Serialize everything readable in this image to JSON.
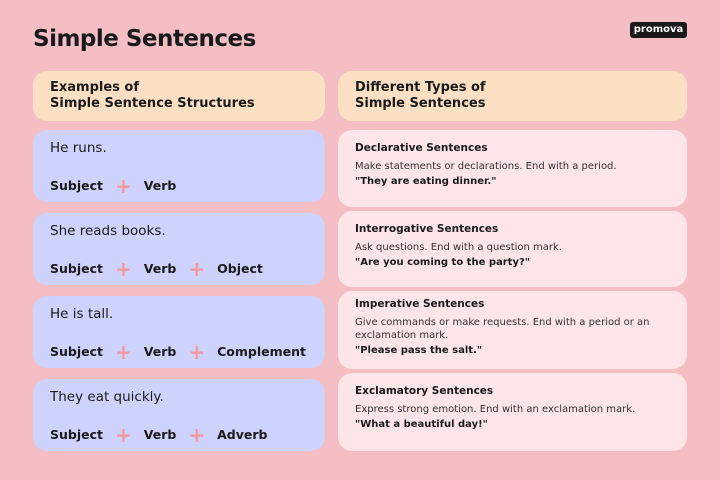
{
  "title": "Simple Sentences",
  "logo": "promova",
  "left_header": [
    "Examples of",
    "Simple Sentence Structures"
  ],
  "right_header": [
    "Different Types of",
    "Simple Sentences"
  ],
  "examples": [
    {
      "sentence": "He runs.",
      "parts": [
        "Subject",
        "Verb"
      ]
    },
    {
      "sentence": "She reads books.",
      "parts": [
        "Subject",
        "Verb",
        "Object"
      ]
    },
    {
      "sentence": "He is tall.",
      "parts": [
        "Subject",
        "Verb",
        "Complement"
      ]
    },
    {
      "sentence": "They eat quickly.",
      "parts": [
        "Subject",
        "Verb",
        "Adverb"
      ]
    }
  ],
  "types": [
    {
      "name": "Declarative Sentences",
      "desc": "Make statements or declarations. End with a period.",
      "example": "\"They are eating dinner.\""
    },
    {
      "name": "Interrogative Sentences",
      "desc": "Ask questions. End with a question mark.",
      "example": "\"Are you coming to the party?\""
    },
    {
      "name": "Imperative Sentences",
      "desc": "Give commands or make requests. End with a period or an exclamation mark.",
      "example": "\"Please pass the salt.\""
    },
    {
      "name": "Exclamatory Sentences",
      "desc": "Express strong emotion. End with an exclamation mark.",
      "example": "\"What a beautiful day!\""
    }
  ],
  "colors": {
    "background": "#f4bec4",
    "header": "#fde0c4",
    "example_card": "#cdd3fd",
    "type_card": "#fde5e8",
    "plus": "#f49a9e"
  }
}
